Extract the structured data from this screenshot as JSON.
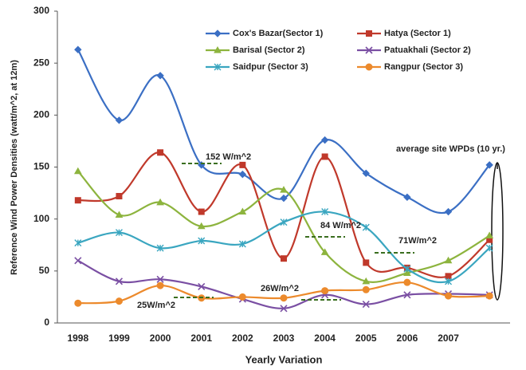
{
  "chart_data": {
    "type": "line",
    "y_label": "Reference Wind Power Densities (watt/m^2, at 12m)",
    "x_label": "Yearly Variation",
    "categories": [
      "1998",
      "1999",
      "2000",
      "2001",
      "2002",
      "2003",
      "2004",
      "2005",
      "2006",
      "2007",
      null
    ],
    "ylim": [
      0,
      300
    ],
    "yticks": [
      0,
      50,
      100,
      150,
      200,
      250,
      300
    ],
    "smooth": true,
    "series": [
      {
        "name": "Cox's Bazar(Sector 1)",
        "color": "#3b6fc4",
        "marker": "diamond",
        "values": [
          263,
          195,
          238,
          152,
          143,
          120,
          176,
          144,
          121,
          107,
          152
        ]
      },
      {
        "name": "Hatya (Sector 1)",
        "color": "#c0392b",
        "marker": "square",
        "values": [
          118,
          122,
          164,
          107,
          152,
          62,
          160,
          58,
          53,
          45,
          80
        ]
      },
      {
        "name": "Barisal (Sector 2)",
        "color": "#8db43e",
        "marker": "triangle",
        "values": [
          146,
          104,
          116,
          93,
          107,
          128,
          68,
          40,
          48,
          60,
          84
        ]
      },
      {
        "name": "Patuakhali (Sector 2)",
        "color": "#7a4fa3",
        "marker": "x",
        "values": [
          60,
          40,
          42,
          35,
          23,
          14,
          27,
          18,
          27,
          28,
          27
        ]
      },
      {
        "name": "Saidpur (Sector 3)",
        "color": "#3aa6c0",
        "marker": "star",
        "values": [
          77,
          87,
          72,
          79,
          76,
          97,
          107,
          92,
          52,
          40,
          72
        ]
      },
      {
        "name": "Rangpur (Sector 3)",
        "color": "#ec8a2c",
        "marker": "circle",
        "values": [
          19,
          21,
          36,
          24,
          25,
          24,
          31,
          32,
          39,
          26,
          26
        ]
      }
    ],
    "annotations": [
      "152 W/m^2",
      "84 W/m^2",
      "71W/m^2",
      "26W/m^2",
      "25W/m^2",
      "average site WPDs (10 yr.)"
    ]
  }
}
